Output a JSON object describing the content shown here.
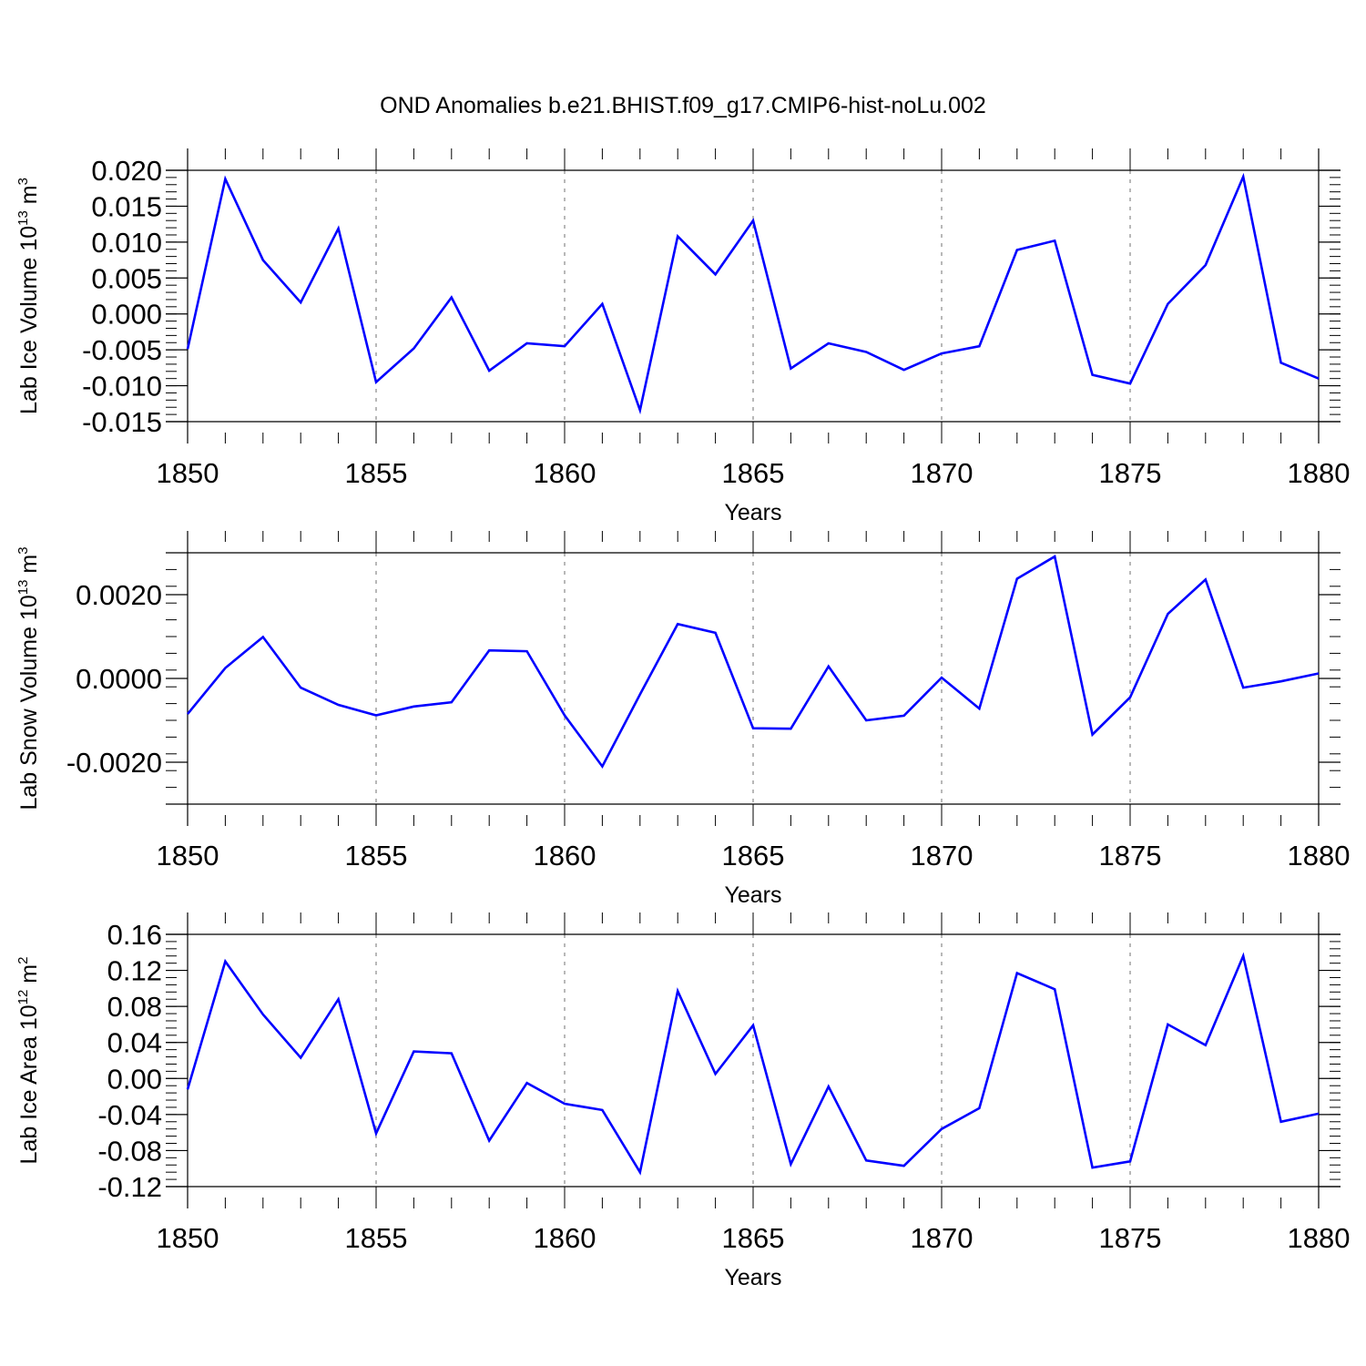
{
  "figure": {
    "title": "OND Anomalies b.e21.BHIST.f09_g17.CMIP6-hist-noLu.002"
  },
  "chart_data": [
    {
      "type": "line",
      "title": "",
      "xlabel": "Years",
      "ylabel": {
        "main": "Lab Ice Volume 10",
        "exponent": "13",
        "unit": " m",
        "unit_exponent": "3"
      },
      "xlim": [
        1850,
        1880
      ],
      "ylim": [
        -0.015,
        0.02
      ],
      "xticks": [
        1850,
        1855,
        1860,
        1865,
        1870,
        1875,
        1880
      ],
      "yticks": [
        -0.015,
        -0.01,
        -0.005,
        0.0,
        0.005,
        0.01,
        0.015,
        0.02
      ],
      "ytick_labels": [
        "-0.015",
        "-0.010",
        "-0.005",
        "0.000",
        "0.005",
        "0.010",
        "0.015",
        "0.020"
      ],
      "series": [
        {
          "name": "Lab Ice Volume",
          "color": "#0000ff",
          "x": [
            1850,
            1851,
            1852,
            1853,
            1854,
            1855,
            1856,
            1857,
            1858,
            1859,
            1860,
            1861,
            1862,
            1863,
            1864,
            1865,
            1866,
            1867,
            1868,
            1869,
            1870,
            1871,
            1872,
            1873,
            1874,
            1875,
            1876,
            1877,
            1878,
            1879,
            1880
          ],
          "values": [
            -0.0049,
            0.0188,
            0.0075,
            0.0016,
            0.0119,
            -0.0095,
            -0.0048,
            0.0023,
            -0.0079,
            -0.0041,
            -0.0045,
            0.0014,
            -0.0134,
            0.0108,
            0.0055,
            0.013,
            -0.0076,
            -0.0041,
            -0.0053,
            -0.0078,
            -0.0055,
            -0.0045,
            0.0089,
            0.0102,
            -0.0085,
            -0.0097,
            0.0014,
            0.0068,
            0.0191,
            -0.0068,
            -0.009
          ]
        }
      ]
    },
    {
      "type": "line",
      "title": "",
      "xlabel": "Years",
      "ylabel": {
        "main": "Lab Snow Volume 10",
        "exponent": "13",
        "unit": " m",
        "unit_exponent": "3"
      },
      "xlim": [
        1850,
        1880
      ],
      "ylim": [
        -0.003,
        0.003
      ],
      "xticks": [
        1850,
        1855,
        1860,
        1865,
        1870,
        1875,
        1880
      ],
      "yticks": [
        -0.002,
        0.0,
        0.002
      ],
      "ytick_labels": [
        "-0.0020",
        "0.0000",
        "0.0020"
      ],
      "series": [
        {
          "name": "Lab Snow Volume",
          "color": "#0000ff",
          "x": [
            1850,
            1851,
            1852,
            1853,
            1854,
            1855,
            1856,
            1857,
            1858,
            1859,
            1860,
            1861,
            1862,
            1863,
            1864,
            1865,
            1866,
            1867,
            1868,
            1869,
            1870,
            1871,
            1872,
            1873,
            1874,
            1875,
            1876,
            1877,
            1878,
            1879,
            1880
          ],
          "values": [
            -0.00085,
            0.00025,
            0.00099,
            -0.00022,
            -0.00063,
            -0.00088,
            -0.00067,
            -0.00057,
            0.00067,
            0.00065,
            -0.00088,
            -0.0021,
            -0.00038,
            0.0013,
            0.00109,
            -0.00119,
            -0.0012,
            0.00029,
            -0.001,
            -0.00089,
            2e-05,
            -0.00072,
            0.00238,
            0.00291,
            -0.00134,
            -0.00045,
            0.00154,
            0.00236,
            -0.00022,
            -7e-05,
            0.00012
          ]
        }
      ]
    },
    {
      "type": "line",
      "title": "",
      "xlabel": "Years",
      "ylabel": {
        "main": "Lab Ice Area 10",
        "exponent": "12",
        "unit": " m",
        "unit_exponent": "2"
      },
      "xlim": [
        1850,
        1880
      ],
      "ylim": [
        -0.12,
        0.16
      ],
      "xticks": [
        1850,
        1855,
        1860,
        1865,
        1870,
        1875,
        1880
      ],
      "yticks": [
        -0.12,
        -0.08,
        -0.04,
        0.0,
        0.04,
        0.08,
        0.12,
        0.16
      ],
      "ytick_labels": [
        "-0.12",
        "-0.08",
        "-0.04",
        "0.00",
        "0.04",
        "0.08",
        "0.12",
        "0.16"
      ],
      "series": [
        {
          "name": "Lab Ice Area",
          "color": "#0000ff",
          "x": [
            1850,
            1851,
            1852,
            1853,
            1854,
            1855,
            1856,
            1857,
            1858,
            1859,
            1860,
            1861,
            1862,
            1863,
            1864,
            1865,
            1866,
            1867,
            1868,
            1869,
            1870,
            1871,
            1872,
            1873,
            1874,
            1875,
            1876,
            1877,
            1878,
            1879,
            1880
          ],
          "values": [
            -0.012,
            0.13,
            0.071,
            0.023,
            0.088,
            -0.061,
            0.03,
            0.028,
            -0.069,
            -0.005,
            -0.028,
            -0.035,
            -0.104,
            0.097,
            0.005,
            0.059,
            -0.095,
            -0.009,
            -0.091,
            -0.097,
            -0.056,
            -0.033,
            0.117,
            0.099,
            -0.099,
            -0.092,
            0.06,
            0.037,
            0.136,
            -0.048,
            -0.039
          ]
        }
      ]
    }
  ]
}
